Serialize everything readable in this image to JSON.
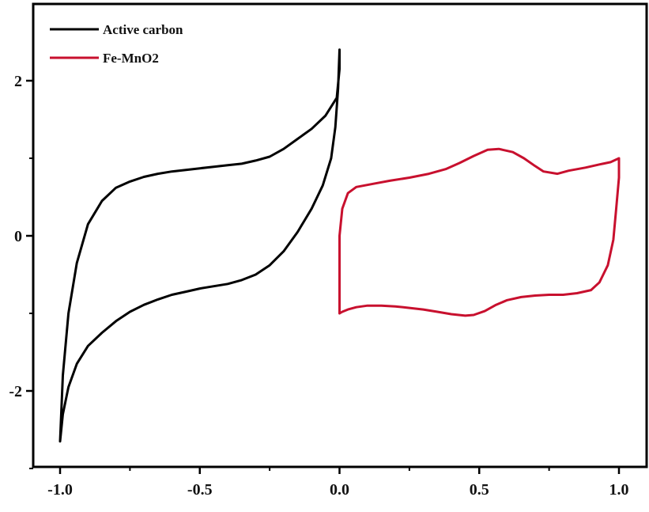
{
  "chart_data": {
    "type": "line",
    "title": "",
    "xlabel": "",
    "ylabel": "",
    "xlim": [
      -1.0,
      1.0
    ],
    "ylim": [
      -3.0,
      3.0
    ],
    "x_ticks": [
      -1.0,
      -0.5,
      0.0,
      0.5,
      1.0
    ],
    "x_tick_labels": [
      "-1.0",
      "-0.5",
      "0.0",
      "0.5",
      "1.0"
    ],
    "y_ticks": [
      -2,
      0,
      2
    ],
    "y_tick_labels": [
      "-2",
      "0",
      "2"
    ],
    "grid": false,
    "legend": "top-left",
    "series": [
      {
        "name": "Active carbon",
        "color": "#000000",
        "points": [
          [
            -1.0,
            -2.65
          ],
          [
            -0.99,
            -2.3
          ],
          [
            -0.97,
            -1.95
          ],
          [
            -0.94,
            -1.65
          ],
          [
            -0.9,
            -1.42
          ],
          [
            -0.85,
            -1.25
          ],
          [
            -0.8,
            -1.1
          ],
          [
            -0.75,
            -0.98
          ],
          [
            -0.7,
            -0.89
          ],
          [
            -0.65,
            -0.82
          ],
          [
            -0.6,
            -0.76
          ],
          [
            -0.55,
            -0.72
          ],
          [
            -0.5,
            -0.68
          ],
          [
            -0.45,
            -0.65
          ],
          [
            -0.4,
            -0.62
          ],
          [
            -0.35,
            -0.57
          ],
          [
            -0.3,
            -0.5
          ],
          [
            -0.25,
            -0.38
          ],
          [
            -0.2,
            -0.2
          ],
          [
            -0.15,
            0.05
          ],
          [
            -0.1,
            0.35
          ],
          [
            -0.06,
            0.65
          ],
          [
            -0.03,
            1.0
          ],
          [
            -0.015,
            1.4
          ],
          [
            -0.005,
            1.9
          ],
          [
            0.0,
            2.4
          ],
          [
            0.0,
            2.15
          ],
          [
            -0.01,
            1.78
          ],
          [
            -0.05,
            1.55
          ],
          [
            -0.1,
            1.38
          ],
          [
            -0.15,
            1.25
          ],
          [
            -0.2,
            1.12
          ],
          [
            -0.25,
            1.02
          ],
          [
            -0.3,
            0.97
          ],
          [
            -0.35,
            0.93
          ],
          [
            -0.4,
            0.91
          ],
          [
            -0.45,
            0.89
          ],
          [
            -0.5,
            0.87
          ],
          [
            -0.55,
            0.85
          ],
          [
            -0.6,
            0.83
          ],
          [
            -0.65,
            0.8
          ],
          [
            -0.7,
            0.76
          ],
          [
            -0.75,
            0.7
          ],
          [
            -0.8,
            0.62
          ],
          [
            -0.85,
            0.45
          ],
          [
            -0.9,
            0.15
          ],
          [
            -0.94,
            -0.35
          ],
          [
            -0.97,
            -1.0
          ],
          [
            -0.99,
            -1.8
          ],
          [
            -1.0,
            -2.65
          ]
        ]
      },
      {
        "name": "Fe-MnO2",
        "color": "#c8102e",
        "points": [
          [
            0.0,
            -1.0
          ],
          [
            0.01,
            -0.98
          ],
          [
            0.03,
            -0.95
          ],
          [
            0.06,
            -0.92
          ],
          [
            0.1,
            -0.9
          ],
          [
            0.15,
            -0.9
          ],
          [
            0.2,
            -0.91
          ],
          [
            0.25,
            -0.93
          ],
          [
            0.3,
            -0.95
          ],
          [
            0.35,
            -0.98
          ],
          [
            0.4,
            -1.01
          ],
          [
            0.45,
            -1.03
          ],
          [
            0.48,
            -1.02
          ],
          [
            0.52,
            -0.97
          ],
          [
            0.56,
            -0.89
          ],
          [
            0.6,
            -0.83
          ],
          [
            0.65,
            -0.79
          ],
          [
            0.7,
            -0.77
          ],
          [
            0.75,
            -0.76
          ],
          [
            0.8,
            -0.76
          ],
          [
            0.85,
            -0.74
          ],
          [
            0.9,
            -0.7
          ],
          [
            0.93,
            -0.6
          ],
          [
            0.96,
            -0.38
          ],
          [
            0.98,
            -0.05
          ],
          [
            0.99,
            0.35
          ],
          [
            1.0,
            0.75
          ],
          [
            1.0,
            1.0
          ],
          [
            0.97,
            0.95
          ],
          [
            0.93,
            0.92
          ],
          [
            0.88,
            0.88
          ],
          [
            0.82,
            0.84
          ],
          [
            0.78,
            0.8
          ],
          [
            0.73,
            0.83
          ],
          [
            0.7,
            0.9
          ],
          [
            0.66,
            1.0
          ],
          [
            0.62,
            1.08
          ],
          [
            0.57,
            1.12
          ],
          [
            0.53,
            1.11
          ],
          [
            0.48,
            1.03
          ],
          [
            0.43,
            0.94
          ],
          [
            0.38,
            0.86
          ],
          [
            0.32,
            0.8
          ],
          [
            0.25,
            0.75
          ],
          [
            0.18,
            0.71
          ],
          [
            0.12,
            0.67
          ],
          [
            0.06,
            0.63
          ],
          [
            0.03,
            0.55
          ],
          [
            0.01,
            0.35
          ],
          [
            0.0,
            0.0
          ],
          [
            0.0,
            -0.5
          ],
          [
            0.0,
            -1.0
          ]
        ]
      }
    ]
  }
}
